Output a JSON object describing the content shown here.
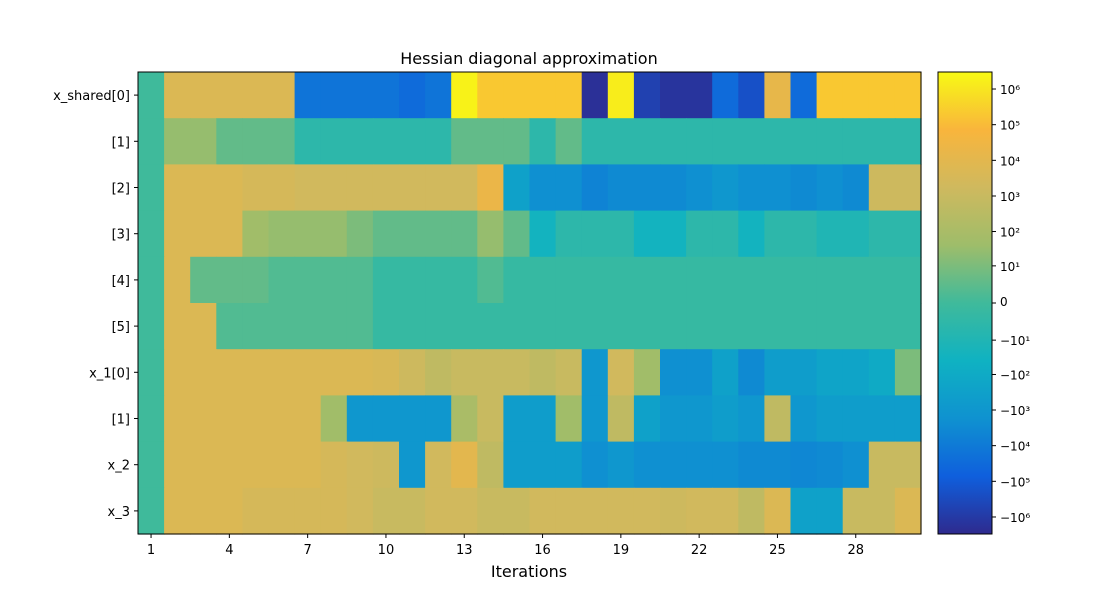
{
  "chart_data": {
    "type": "heatmap",
    "title": "Hessian diagonal approximation",
    "xlabel": "Iterations",
    "ylabel": "",
    "x_range": [
      1,
      29
    ],
    "x_ticks": [
      "1",
      "4",
      "7",
      "10",
      "13",
      "16",
      "19",
      "22",
      "25",
      "28"
    ],
    "x_tick_values": [
      1,
      4,
      7,
      10,
      13,
      16,
      19,
      22,
      25,
      28
    ],
    "y_labels": [
      "x_shared[0]",
      "[1]",
      "[2]",
      "[3]",
      "[4]",
      "[5]",
      "x_1[0]",
      "[1]",
      "x_2",
      "x_3"
    ],
    "scale": "symlog",
    "colorbar_range": [
      -3000000,
      3000000
    ],
    "colorbar_ticks": [
      {
        "value": 1000000,
        "label": "10⁶"
      },
      {
        "value": 100000,
        "label": "10⁵"
      },
      {
        "value": 10000,
        "label": "10⁴"
      },
      {
        "value": 1000,
        "label": "10³"
      },
      {
        "value": 100,
        "label": "10²"
      },
      {
        "value": 10,
        "label": "10¹"
      },
      {
        "value": 0,
        "label": "0"
      },
      {
        "value": -10,
        "label": "−10¹"
      },
      {
        "value": -100,
        "label": "−10²"
      },
      {
        "value": -1000,
        "label": "−10³"
      },
      {
        "value": -10000,
        "label": "−10⁴"
      },
      {
        "value": -100000,
        "label": "−10⁵"
      },
      {
        "value": -1000000,
        "label": "−10⁶"
      }
    ],
    "colormap": [
      "#2e2a8e",
      "#0f5fdd",
      "#0f92d0",
      "#0fb2c2",
      "#3fba9b",
      "#9ebd6a",
      "#cfb95e",
      "#f9b53c",
      "#f8fa14"
    ],
    "values": [
      [
        0,
        5000,
        5000,
        5000,
        5000,
        5000,
        -15000,
        -15000,
        -15000,
        -15000,
        -30000,
        -15000,
        2000000,
        200000,
        200000,
        200000,
        200000,
        -2000000,
        1500000,
        -600000,
        -1500000,
        -1500000,
        -30000,
        -200000,
        15000,
        -30000,
        200000,
        200000,
        200000,
        200000
      ],
      [
        0,
        30,
        30,
        3,
        3,
        3,
        -3,
        -3,
        -3,
        -3,
        -3,
        -3,
        3,
        3,
        3,
        -3,
        3,
        -3,
        -3,
        -3,
        -3,
        -3,
        -3,
        -3,
        -3,
        -3,
        -3,
        -3,
        -3,
        -3
      ],
      [
        0,
        5000,
        5000,
        5000,
        3000,
        3000,
        2000,
        2000,
        2000,
        2000,
        2000,
        2000,
        2000,
        20000,
        -300,
        -2000,
        -2000,
        -5000,
        -3000,
        -3000,
        -3000,
        -2000,
        -1000,
        -2000,
        -2000,
        -3000,
        -2000,
        -3000,
        1500,
        1500
      ],
      [
        0,
        5000,
        5000,
        5000,
        50,
        30,
        30,
        30,
        10,
        3,
        3,
        3,
        3,
        30,
        3,
        -30,
        -3,
        -3,
        -3,
        -30,
        -30,
        -3,
        -3,
        -30,
        -3,
        -3,
        -10,
        -10,
        -3,
        -3
      ],
      [
        0,
        5000,
        3,
        3,
        3,
        1,
        1,
        1,
        1,
        -1,
        -1,
        -1,
        -1,
        1,
        -1,
        -1,
        -1,
        -1,
        -1,
        -1,
        -1,
        -1,
        -1,
        -1,
        -1,
        -1,
        -1,
        -1,
        -1,
        -1
      ],
      [
        0,
        5000,
        5000,
        1,
        1,
        1,
        1,
        1,
        1,
        -1,
        -1,
        -1,
        -1,
        -1,
        -1,
        -1,
        -1,
        -1,
        -1,
        -1,
        -1,
        -1,
        -1,
        -1,
        -1,
        -1,
        -1,
        -1,
        -1,
        -1
      ],
      [
        0,
        5000,
        5000,
        5000,
        5000,
        5000,
        5000,
        5000,
        5000,
        4000,
        1500,
        500,
        1000,
        1000,
        1000,
        500,
        1000,
        -1000,
        2000,
        50,
        -2000,
        -2000,
        -300,
        -3000,
        -500,
        -500,
        -200,
        -200,
        -100,
        10
      ],
      [
        0,
        5000,
        5000,
        5000,
        5000,
        5000,
        5000,
        50,
        -1000,
        -1000,
        -1000,
        -1000,
        100,
        1000,
        -500,
        -500,
        50,
        -1000,
        500,
        -300,
        -1000,
        -1000,
        -500,
        -1000,
        500,
        -1000,
        -500,
        -500,
        -500,
        -500
      ],
      [
        0,
        5000,
        5000,
        5000,
        5000,
        5000,
        5000,
        3000,
        2000,
        1500,
        -1000,
        2000,
        10000,
        500,
        -500,
        -500,
        -500,
        -2000,
        -1000,
        -2000,
        -2000,
        -2000,
        -2000,
        -3000,
        -3000,
        -4000,
        -3000,
        -2000,
        1000,
        1000
      ],
      [
        0,
        5000,
        5000,
        5000,
        3000,
        3000,
        3000,
        3000,
        2000,
        1000,
        1000,
        2000,
        2000,
        1000,
        1000,
        2000,
        2000,
        2000,
        2000,
        2000,
        1500,
        2000,
        2000,
        500,
        5000,
        -300,
        -300,
        1000,
        1000,
        5000
      ]
    ]
  }
}
